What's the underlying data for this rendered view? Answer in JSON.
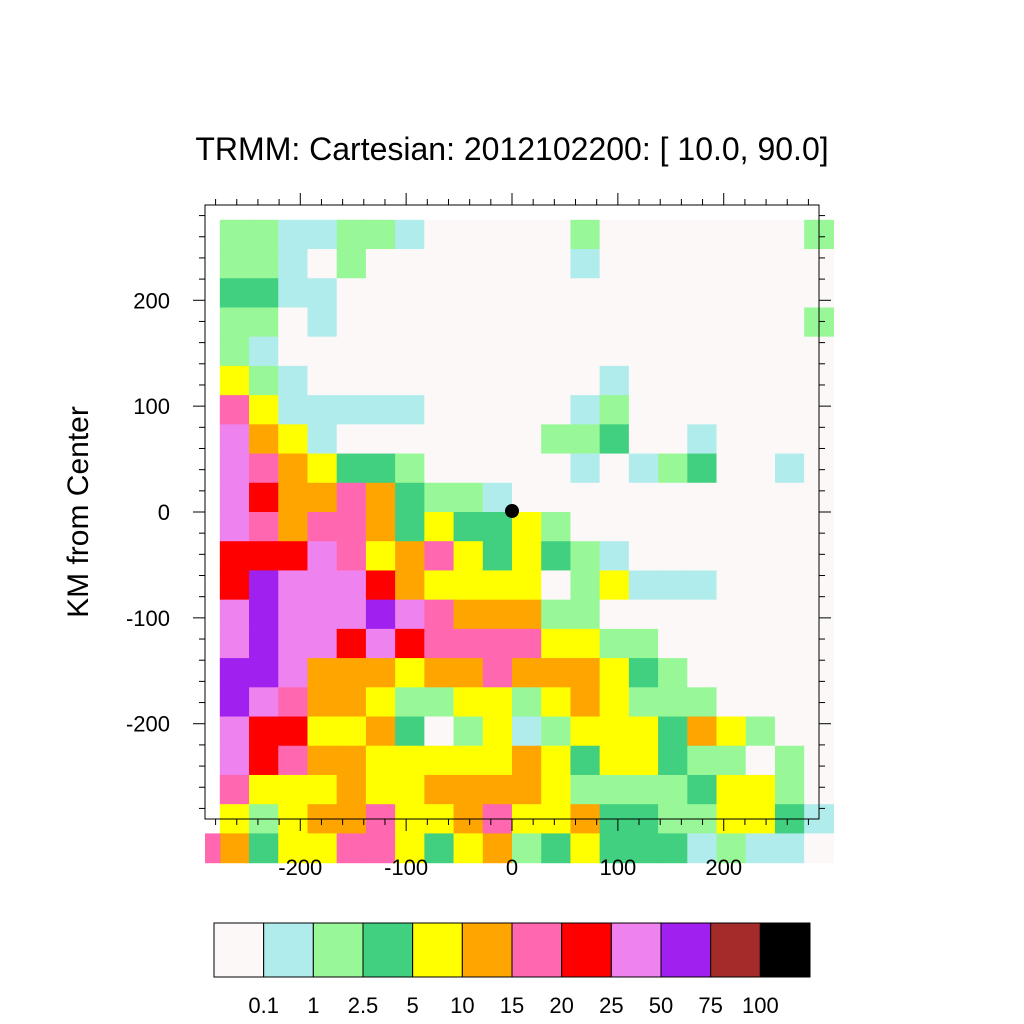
{
  "chart_data": {
    "type": "heatmap",
    "title": "TRMM: Cartesian: 2012102200: [ 10.0, 90.0]",
    "xlabel": "",
    "ylabel": "KM from Center",
    "xlim": [
      -290,
      290
    ],
    "ylim": [
      -290,
      290
    ],
    "x_ticks": [
      -200,
      -100,
      0,
      100,
      200
    ],
    "y_ticks": [
      200,
      100,
      0,
      -100,
      -200
    ],
    "x_tick_labels": [
      "-200",
      "-100",
      "0",
      "100",
      "200"
    ],
    "y_tick_labels": [
      "200",
      "100",
      "0",
      "-100",
      "-200"
    ],
    "cell_size_km": 27.6,
    "grid_origin_km": [
      -276,
      276
    ],
    "levels": [
      "0.1",
      "1",
      "2.5",
      "5",
      "10",
      "15",
      "20",
      "25",
      "50",
      "75",
      "100"
    ],
    "colors": [
      "#fcf8f8",
      "#b0ecec",
      "#98f898",
      "#40d080",
      "#ffff00",
      "#ffa500",
      "#ff68b0",
      "#ff0000",
      "#ee82ee",
      "#a020f0",
      "#a52a2a",
      "#000000"
    ],
    "storm_center": [
      0,
      0
    ],
    "bin_index_rows_top_to_bottom": [
      [
        2,
        2,
        1,
        1,
        2,
        2,
        1,
        0,
        0,
        0,
        0,
        0,
        2,
        0,
        0,
        0,
        0,
        0,
        0,
        0,
        2
      ],
      [
        2,
        2,
        1,
        0,
        2,
        0,
        0,
        0,
        0,
        0,
        0,
        0,
        1,
        0,
        0,
        0,
        0,
        0,
        0,
        0,
        0
      ],
      [
        3,
        3,
        1,
        1,
        0,
        0,
        0,
        0,
        0,
        0,
        0,
        0,
        0,
        0,
        0,
        0,
        0,
        0,
        0,
        0,
        0
      ],
      [
        2,
        2,
        0,
        1,
        0,
        0,
        0,
        0,
        0,
        0,
        0,
        0,
        0,
        0,
        0,
        0,
        0,
        0,
        0,
        0,
        2
      ],
      [
        2,
        1,
        0,
        0,
        0,
        0,
        0,
        0,
        0,
        0,
        0,
        0,
        0,
        0,
        0,
        0,
        0,
        0,
        0,
        0,
        0
      ],
      [
        4,
        2,
        1,
        0,
        0,
        0,
        0,
        0,
        0,
        0,
        0,
        0,
        0,
        1,
        0,
        0,
        0,
        0,
        0,
        0,
        0
      ],
      [
        6,
        4,
        1,
        1,
        1,
        1,
        1,
        0,
        0,
        0,
        0,
        0,
        1,
        2,
        0,
        0,
        0,
        0,
        0,
        0,
        0
      ],
      [
        8,
        5,
        4,
        1,
        0,
        0,
        0,
        0,
        0,
        0,
        0,
        2,
        2,
        3,
        0,
        0,
        1,
        0,
        0,
        0,
        0
      ],
      [
        8,
        6,
        5,
        4,
        3,
        3,
        2,
        0,
        0,
        0,
        0,
        0,
        1,
        0,
        1,
        2,
        3,
        0,
        0,
        1,
        0
      ],
      [
        8,
        7,
        5,
        5,
        6,
        5,
        3,
        2,
        2,
        1,
        0,
        0,
        0,
        0,
        0,
        0,
        0,
        0,
        0,
        0,
        0
      ],
      [
        8,
        6,
        5,
        6,
        6,
        5,
        3,
        4,
        3,
        3,
        4,
        2,
        0,
        0,
        0,
        0,
        0,
        0,
        0,
        0,
        0
      ],
      [
        7,
        7,
        7,
        8,
        6,
        4,
        5,
        6,
        4,
        3,
        4,
        3,
        2,
        1,
        0,
        0,
        0,
        0,
        0,
        0,
        0
      ],
      [
        7,
        9,
        8,
        8,
        8,
        7,
        5,
        4,
        4,
        4,
        4,
        0,
        2,
        4,
        1,
        1,
        1,
        0,
        0,
        0,
        0
      ],
      [
        8,
        9,
        8,
        8,
        8,
        9,
        8,
        6,
        5,
        5,
        5,
        2,
        2,
        0,
        0,
        0,
        0,
        0,
        0,
        0,
        0
      ],
      [
        8,
        9,
        8,
        8,
        7,
        8,
        7,
        6,
        6,
        6,
        6,
        4,
        4,
        2,
        2,
        0,
        0,
        0,
        0,
        0,
        0
      ],
      [
        9,
        9,
        8,
        5,
        5,
        5,
        4,
        5,
        5,
        6,
        5,
        5,
        5,
        4,
        3,
        2,
        0,
        0,
        0,
        0,
        0
      ],
      [
        9,
        8,
        6,
        5,
        5,
        4,
        2,
        2,
        4,
        4,
        2,
        4,
        5,
        4,
        2,
        2,
        2,
        0,
        0,
        0,
        0
      ],
      [
        8,
        7,
        7,
        4,
        4,
        5,
        3,
        0,
        2,
        4,
        1,
        2,
        4,
        4,
        4,
        3,
        5,
        4,
        2,
        0,
        0
      ],
      [
        8,
        7,
        6,
        5,
        5,
        4,
        4,
        4,
        4,
        4,
        5,
        4,
        3,
        4,
        4,
        3,
        2,
        2,
        0,
        2,
        0
      ],
      [
        6,
        4,
        4,
        4,
        5,
        4,
        4,
        5,
        5,
        5,
        5,
        4,
        2,
        2,
        2,
        2,
        3,
        4,
        4,
        2,
        0
      ],
      [
        4,
        2,
        4,
        5,
        5,
        6,
        4,
        4,
        5,
        6,
        4,
        4,
        5,
        3,
        3,
        2,
        2,
        4,
        4,
        3,
        1
      ],
      [
        5,
        3,
        4,
        4,
        6,
        6,
        4,
        3,
        4,
        5,
        2,
        3,
        4,
        3,
        3,
        3,
        1,
        2,
        1,
        1,
        0
      ]
    ],
    "left_edge_column": {
      "color_index": 6,
      "row": 21
    }
  },
  "colorbar": {
    "labels": [
      "0.1",
      "1",
      "2.5",
      "5",
      "10",
      "15",
      "20",
      "25",
      "50",
      "75",
      "100"
    ]
  }
}
